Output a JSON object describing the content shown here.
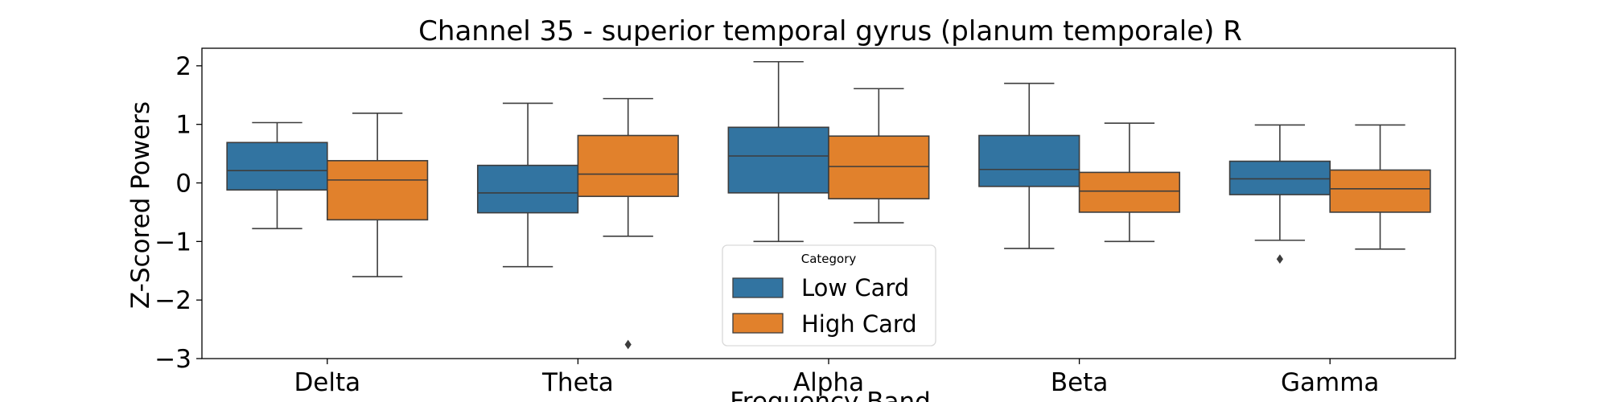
{
  "chart_data": {
    "type": "box",
    "title": "Channel 35 - superior temporal gyrus (planum temporale) R",
    "xlabel": "Frequency Band",
    "ylabel": "Z-Scored Powers",
    "ylim": [
      -3,
      2.3
    ],
    "yticks": [
      -3,
      -2,
      -1,
      0,
      1,
      2
    ],
    "categories": [
      "Delta",
      "Theta",
      "Alpha",
      "Beta",
      "Gamma"
    ],
    "legend": {
      "title": "Category",
      "position": "bottom-center"
    },
    "series": [
      {
        "name": "Low Card",
        "color": "#3274a1",
        "boxes": [
          {
            "whisker_low": -0.78,
            "q1": -0.12,
            "median": 0.21,
            "q3": 0.69,
            "whisker_high": 1.03,
            "outliers": []
          },
          {
            "whisker_low": -1.43,
            "q1": -0.51,
            "median": -0.17,
            "q3": 0.3,
            "whisker_high": 1.36,
            "outliers": []
          },
          {
            "whisker_low": -1.0,
            "q1": -0.17,
            "median": 0.46,
            "q3": 0.95,
            "whisker_high": 2.07,
            "outliers": []
          },
          {
            "whisker_low": -1.12,
            "q1": -0.06,
            "median": 0.23,
            "q3": 0.81,
            "whisker_high": 1.7,
            "outliers": []
          },
          {
            "whisker_low": -0.98,
            "q1": -0.2,
            "median": 0.07,
            "q3": 0.37,
            "whisker_high": 0.99,
            "outliers": [
              -1.3
            ]
          }
        ]
      },
      {
        "name": "High Card",
        "color": "#e1812c",
        "boxes": [
          {
            "whisker_low": -1.6,
            "q1": -0.63,
            "median": 0.05,
            "q3": 0.38,
            "whisker_high": 1.19,
            "outliers": []
          },
          {
            "whisker_low": -0.91,
            "q1": -0.23,
            "median": 0.15,
            "q3": 0.81,
            "whisker_high": 1.44,
            "outliers": [
              -2.76
            ]
          },
          {
            "whisker_low": -0.68,
            "q1": -0.27,
            "median": 0.28,
            "q3": 0.8,
            "whisker_high": 1.61,
            "outliers": []
          },
          {
            "whisker_low": -1.0,
            "q1": -0.5,
            "median": -0.14,
            "q3": 0.18,
            "whisker_high": 1.02,
            "outliers": []
          },
          {
            "whisker_low": -1.13,
            "q1": -0.5,
            "median": -0.1,
            "q3": 0.22,
            "whisker_high": 0.99,
            "outliers": []
          }
        ]
      }
    ]
  }
}
